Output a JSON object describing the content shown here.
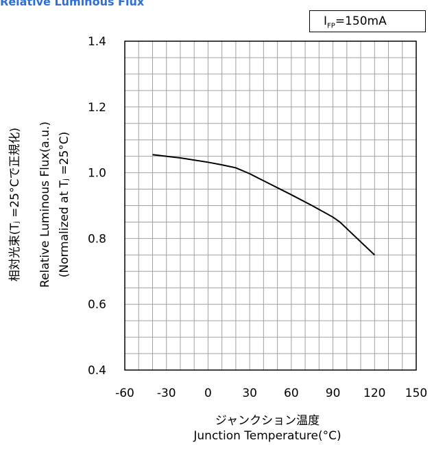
{
  "chart_data": {
    "type": "line",
    "title": "Relative Luminous Flux",
    "condition": {
      "symbol": "I",
      "subscript": "FP",
      "value": "=150mA"
    },
    "ylabel_lines": [
      "相対光束(Tⱼ =25°Cで正規化)",
      "Relative Luminous Flux(a.u.)",
      "(Normalized at Tⱼ =25°C)"
    ],
    "xlabel_lines": [
      "ジャンクション温度",
      "Junction Temperature(°C)"
    ],
    "xlim": [
      -60,
      150
    ],
    "ylim": [
      0.4,
      1.4
    ],
    "xticks": [
      "-60",
      "-30",
      "0",
      "30",
      "60",
      "90",
      "120",
      "150"
    ],
    "yticks": [
      "0.4",
      "0.6",
      "0.8",
      "1.0",
      "1.2",
      "1.4"
    ],
    "grid": true,
    "x": [
      -40,
      -20,
      0,
      10,
      20,
      30,
      45,
      60,
      75,
      90,
      95,
      110,
      120
    ],
    "y": [
      1.055,
      1.045,
      1.032,
      1.024,
      1.015,
      0.997,
      0.965,
      0.933,
      0.9,
      0.865,
      0.85,
      0.79,
      0.75
    ]
  }
}
